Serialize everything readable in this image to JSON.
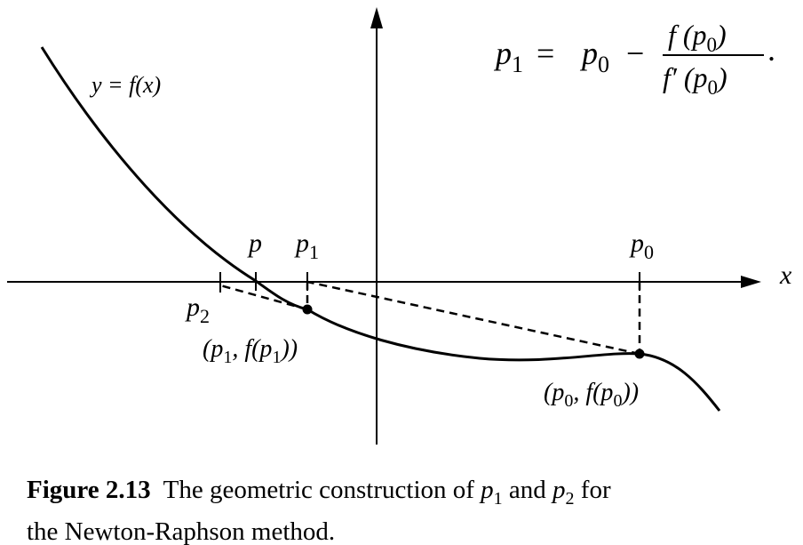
{
  "labels": {
    "x_axis": "x",
    "curve": "y = f(x)",
    "p": "p",
    "p1": "p",
    "p1_sub": "1",
    "p0": "p",
    "p0_sub": "0",
    "p2": "p",
    "p2_sub": "2",
    "point1_a": "(p",
    "point1_sub1": "1",
    "point1_b": ", f(p",
    "point1_sub2": "1",
    "point1_c": "))",
    "point0_a": "(p",
    "point0_sub1": "0",
    "point0_b": ", f(p",
    "point0_sub2": "0",
    "point0_c": "))"
  },
  "formula": {
    "lhs": "p",
    "lhs_sub": "1",
    "eq": "=",
    "p0": "p",
    "p0_sub": "0",
    "minus": "−",
    "num_a": "f (p",
    "num_sub": "0",
    "num_b": ")",
    "den_a": "f′ (p",
    "den_sub": "0",
    "den_b": ")",
    "period": "."
  },
  "caption": {
    "figure": "Figure 2.13",
    "line1_a": "The geometric construction of ",
    "line1_p": "p",
    "line1_p_sub": "1",
    "line1_and": " and ",
    "line1_p2": "p",
    "line1_p2_sub": "2",
    "line1_b": " for",
    "line2": "the Newton-Raphson method."
  }
}
